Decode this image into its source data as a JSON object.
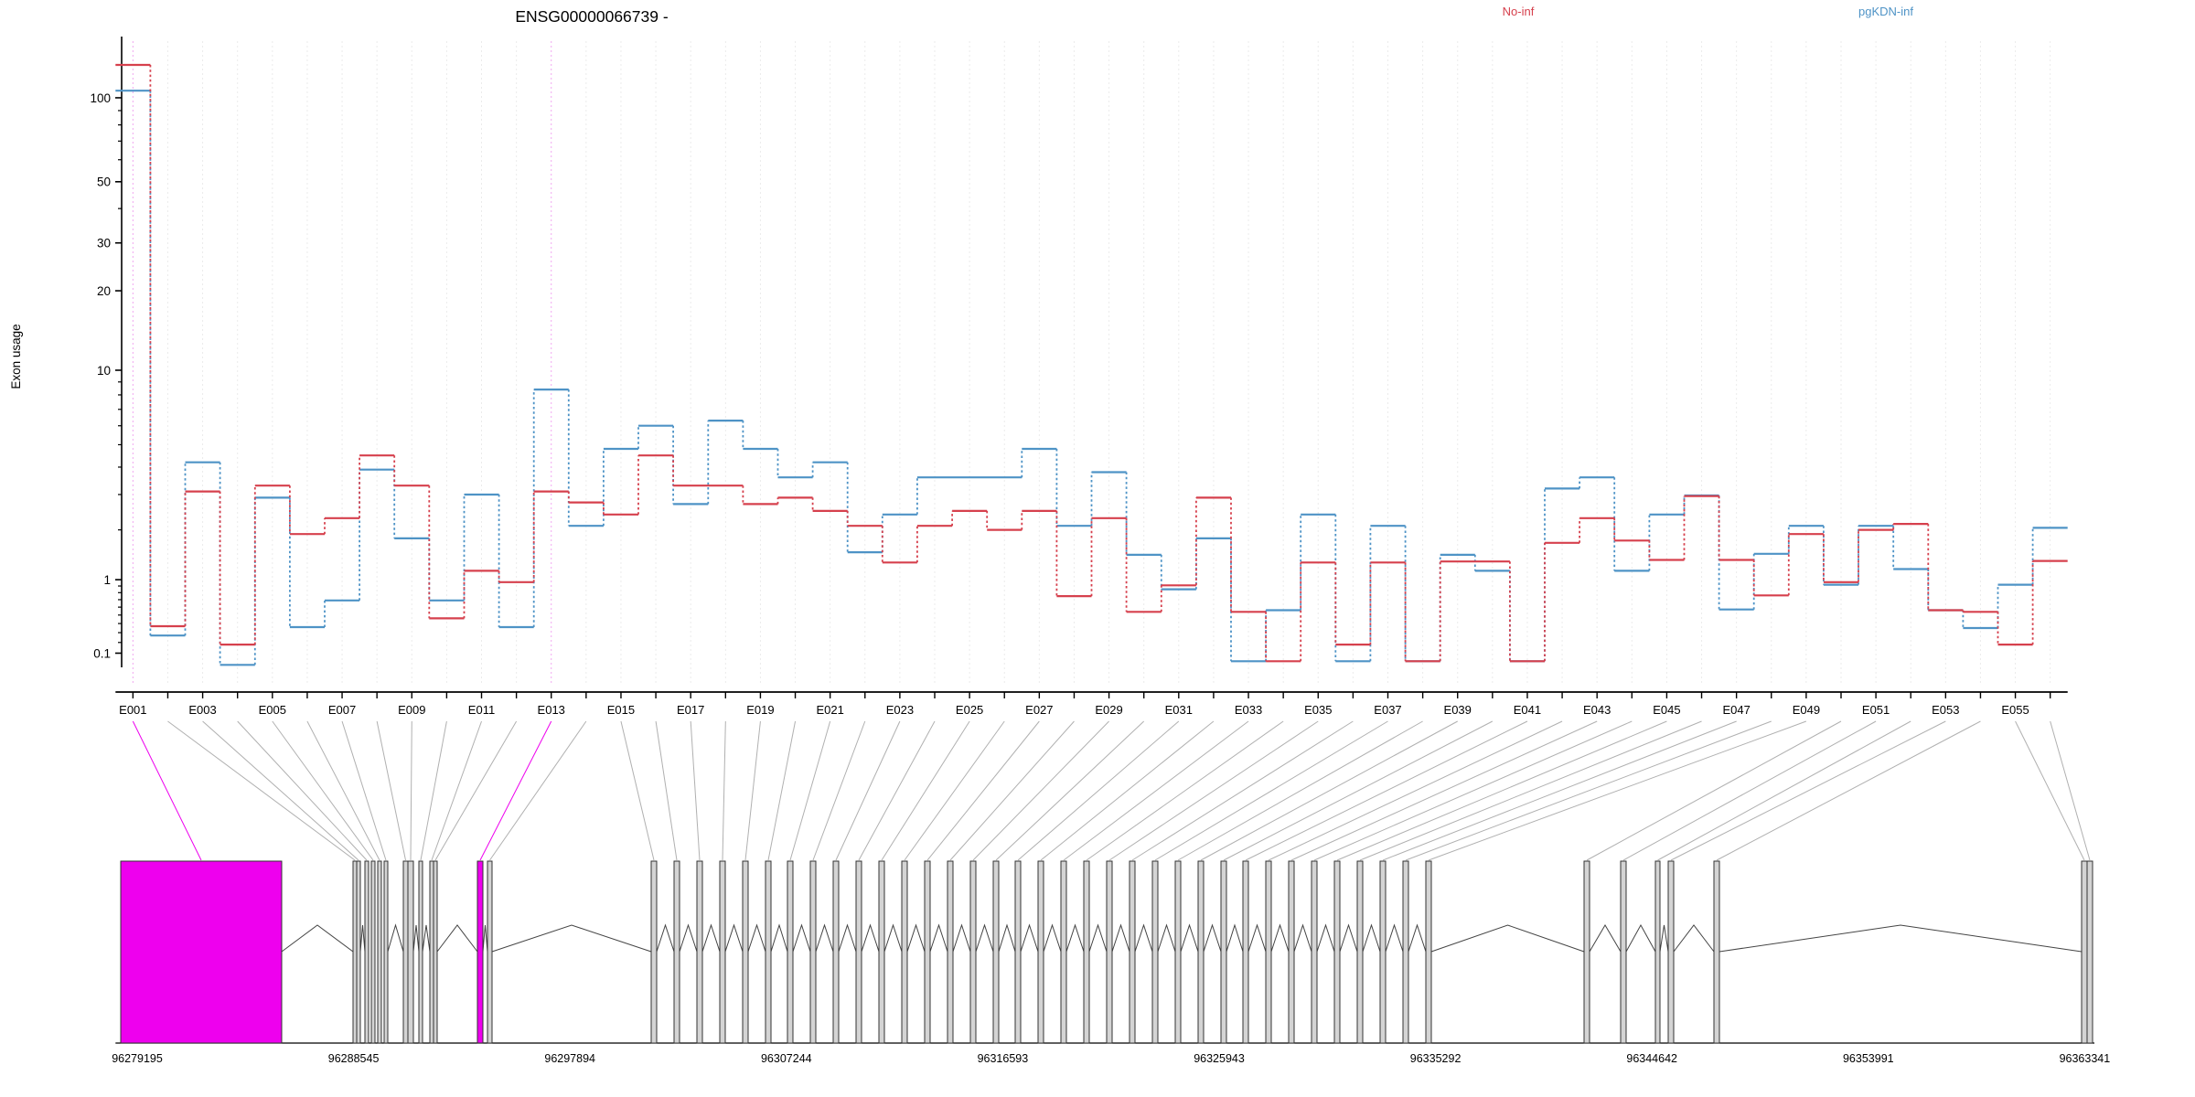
{
  "title": "ENSG00000066739 -",
  "legend": {
    "items": [
      {
        "label": "No-inf",
        "color": "#d6404d"
      },
      {
        "label": "pgKDN-inf",
        "color": "#4e93c6"
      }
    ]
  },
  "chart_data": {
    "type": "line",
    "subtype": "exon-usage-step",
    "title": "ENSG00000066739 -",
    "xlabel": "",
    "ylabel": "Exon usage",
    "y_scale": "log10(1+v)",
    "ylim": [
      0,
      140
    ],
    "grid": "vertical-dotted-per-exon",
    "legend_position": "top-right",
    "y_major_ticks": [
      "100",
      "50",
      "30",
      "20",
      "10",
      "1",
      "0.1"
    ],
    "y_major_tick_values": [
      100,
      50,
      30,
      20,
      10,
      1,
      0.1
    ],
    "y_minor_tick_values": [
      0.2,
      0.3,
      0.4,
      0.5,
      0.6,
      0.7,
      0.8,
      0.9,
      2,
      3,
      4,
      5,
      6,
      7,
      8,
      9,
      40,
      60,
      70,
      80,
      90
    ],
    "x_tick_labels": [
      "E001",
      "E003",
      "E005",
      "E007",
      "E009",
      "E011",
      "E013",
      "E015",
      "E017",
      "E019",
      "E021",
      "E023",
      "E025",
      "E027",
      "E029",
      "E031",
      "E033",
      "E035",
      "E037",
      "E039",
      "E041",
      "E043",
      "E045",
      "E047",
      "E049",
      "E051",
      "E053",
      "E055"
    ],
    "categories": [
      "E001",
      "E002",
      "E003",
      "E004",
      "E005",
      "E006",
      "E007",
      "E008",
      "E009",
      "E010",
      "E011",
      "E012",
      "E013",
      "E014",
      "E015",
      "E016",
      "E017",
      "E018",
      "E019",
      "E020",
      "E021",
      "E022",
      "E023",
      "E024",
      "E025",
      "E026",
      "E027",
      "E028",
      "E029",
      "E030",
      "E031",
      "E032",
      "E033",
      "E034",
      "E035",
      "E036",
      "E037",
      "E038",
      "E039",
      "E040",
      "E041",
      "E042",
      "E043",
      "E044",
      "E045",
      "E046",
      "E047",
      "E048",
      "E049",
      "E050",
      "E051",
      "E052",
      "E053",
      "E054",
      "E055",
      "E056"
    ],
    "highlighted_exons": [
      "E001",
      "E013"
    ],
    "series": [
      {
        "name": "No-inf",
        "color": "#d6404d",
        "values": [
          131,
          0.37,
          3.1,
          0.18,
          3.3,
          1.9,
          2.3,
          4.5,
          3.3,
          0.46,
          1.15,
          0.96,
          3.1,
          2.75,
          2.4,
          4.5,
          3.3,
          3.3,
          2.7,
          2.9,
          2.5,
          2.1,
          1.3,
          2.1,
          2.5,
          2.0,
          2.5,
          0.75,
          2.3,
          0.54,
          0.91,
          2.9,
          0.54,
          0.03,
          1.3,
          0.18,
          1.3,
          0.03,
          1.32,
          1.32,
          0.03,
          1.7,
          2.3,
          1.75,
          1.35,
          2.95,
          1.35,
          0.76,
          1.9,
          0.96,
          2.0,
          2.15,
          0.56,
          0.54,
          0.18,
          1.33
        ]
      },
      {
        "name": "pgKDN-inf",
        "color": "#4e93c6",
        "values": [
          106,
          0.27,
          4.2,
          0.0,
          2.9,
          0.36,
          0.69,
          3.9,
          1.8,
          0.69,
          3.0,
          0.36,
          8.4,
          2.1,
          4.8,
          6.0,
          2.7,
          6.3,
          4.8,
          3.6,
          4.2,
          1.5,
          2.4,
          3.6,
          3.6,
          3.6,
          4.8,
          2.1,
          3.8,
          1.45,
          0.85,
          1.8,
          0.03,
          0.56,
          2.4,
          0.03,
          2.1,
          0.03,
          1.45,
          1.15,
          0.03,
          3.2,
          3.6,
          1.15,
          2.4,
          2.97,
          0.57,
          1.47,
          2.1,
          0.92,
          2.1,
          1.18,
          0.56,
          0.35,
          0.92,
          2.05
        ]
      }
    ]
  },
  "gene_model": {
    "strand": "-",
    "coordinate_labels": [
      "96279195",
      "96288545",
      "96297894",
      "96307244",
      "96316593",
      "96325943",
      "96335292",
      "96344642",
      "96353991",
      "96363341"
    ],
    "highlight_color": "#ee00ee",
    "exon_fill": "#d4d4d4",
    "exons": [
      [
        132,
        308,
        1
      ],
      [
        386,
        390,
        0
      ],
      [
        390,
        394,
        0
      ],
      [
        399,
        403,
        0
      ],
      [
        406,
        410,
        0
      ],
      [
        413,
        417,
        0
      ],
      [
        420,
        424,
        0
      ],
      [
        441,
        446,
        0
      ],
      [
        446,
        452,
        0
      ],
      [
        458,
        462,
        0
      ],
      [
        470,
        474,
        0
      ],
      [
        474,
        478,
        0
      ],
      [
        522,
        528,
        1
      ],
      [
        533,
        538,
        0
      ],
      [
        712,
        718,
        0
      ],
      [
        737,
        743,
        0
      ],
      [
        762,
        768,
        0
      ],
      [
        787,
        793,
        0
      ],
      [
        812,
        818,
        0
      ],
      [
        837,
        843,
        0
      ],
      [
        861,
        867,
        0
      ],
      [
        886,
        892,
        0
      ],
      [
        911,
        917,
        0
      ],
      [
        936,
        942,
        0
      ],
      [
        961,
        967,
        0
      ],
      [
        986,
        992,
        0
      ],
      [
        1011,
        1017,
        0
      ],
      [
        1036,
        1042,
        0
      ],
      [
        1061,
        1067,
        0
      ],
      [
        1086,
        1092,
        0
      ],
      [
        1110,
        1116,
        0
      ],
      [
        1135,
        1141,
        0
      ],
      [
        1160,
        1166,
        0
      ],
      [
        1185,
        1191,
        0
      ],
      [
        1210,
        1216,
        0
      ],
      [
        1235,
        1241,
        0
      ],
      [
        1260,
        1266,
        0
      ],
      [
        1285,
        1291,
        0
      ],
      [
        1310,
        1316,
        0
      ],
      [
        1335,
        1341,
        0
      ],
      [
        1359,
        1365,
        0
      ],
      [
        1384,
        1390,
        0
      ],
      [
        1409,
        1415,
        0
      ],
      [
        1434,
        1440,
        0
      ],
      [
        1459,
        1465,
        0
      ],
      [
        1484,
        1490,
        0
      ],
      [
        1509,
        1515,
        0
      ],
      [
        1534,
        1540,
        0
      ],
      [
        1559,
        1565,
        0
      ],
      [
        1732,
        1738,
        0
      ],
      [
        1772,
        1778,
        0
      ],
      [
        1810,
        1815,
        0
      ],
      [
        1824,
        1830,
        0
      ],
      [
        1874,
        1880,
        0
      ],
      [
        2276,
        2282,
        0
      ],
      [
        2282,
        2288,
        0
      ]
    ]
  },
  "colors": {
    "grid": "#ebebeb",
    "grid_highlight": "#f0a8f0",
    "axis": "#000000",
    "fan_line": "#b0b0b0",
    "intron_line": "#444444",
    "exon_stroke": "#333333"
  }
}
